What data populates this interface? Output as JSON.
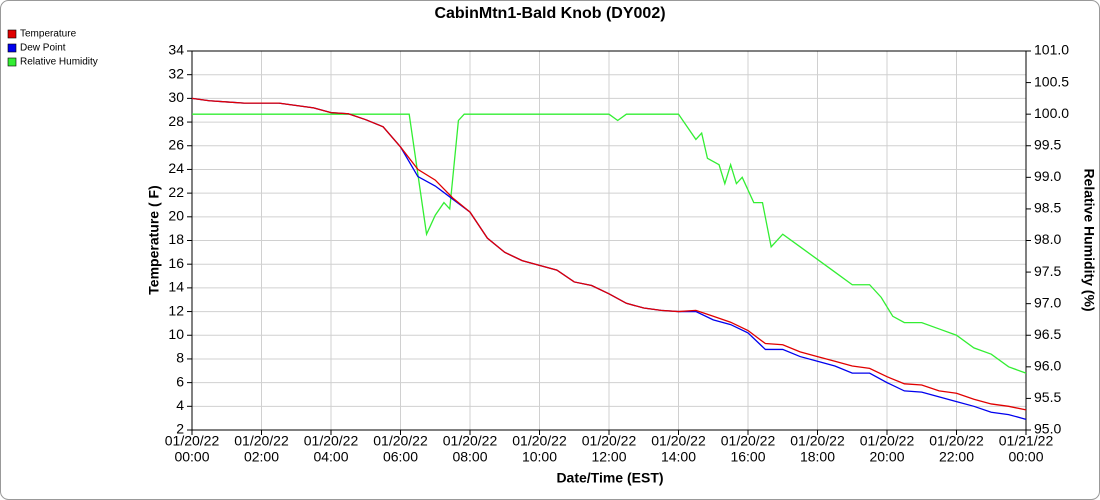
{
  "chart_data": {
    "type": "line",
    "title": "CabinMtn1-Bald Knob (DY002)",
    "xlabel": "Date/Time (EST)",
    "ylabel": "Temperature ( F)",
    "y2label": "Relative Humidity (%)",
    "xlim": [
      "01/20/22 00:00",
      "01/21/22 00:00"
    ],
    "xticks": [
      {
        "value": "01/20/22 00:00",
        "label": [
          "01/20/22",
          "00:00"
        ]
      },
      {
        "value": "01/20/22 02:00",
        "label": [
          "01/20/22",
          "02:00"
        ]
      },
      {
        "value": "01/20/22 04:00",
        "label": [
          "01/20/22",
          "04:00"
        ]
      },
      {
        "value": "01/20/22 06:00",
        "label": [
          "01/20/22",
          "06:00"
        ]
      },
      {
        "value": "01/20/22 08:00",
        "label": [
          "01/20/22",
          "08:00"
        ]
      },
      {
        "value": "01/20/22 10:00",
        "label": [
          "01/20/22",
          "10:00"
        ]
      },
      {
        "value": "01/20/22 12:00",
        "label": [
          "01/20/22",
          "12:00"
        ]
      },
      {
        "value": "01/20/22 14:00",
        "label": [
          "01/20/22",
          "14:00"
        ]
      },
      {
        "value": "01/20/22 16:00",
        "label": [
          "01/20/22",
          "16:00"
        ]
      },
      {
        "value": "01/20/22 18:00",
        "label": [
          "01/20/22",
          "18:00"
        ]
      },
      {
        "value": "01/20/22 20:00",
        "label": [
          "01/20/22",
          "20:00"
        ]
      },
      {
        "value": "01/20/22 22:00",
        "label": [
          "01/20/22",
          "22:00"
        ]
      },
      {
        "value": "01/21/22 00:00",
        "label": [
          "01/21/22",
          "00:00"
        ]
      }
    ],
    "ylim": [
      2,
      34
    ],
    "yticks": [
      2,
      4,
      6,
      8,
      10,
      12,
      14,
      16,
      18,
      20,
      22,
      24,
      26,
      28,
      30,
      32,
      34
    ],
    "y2lim": [
      95,
      101
    ],
    "y2ticks": [
      {
        "value": 95,
        "label": "95.0"
      },
      95.5,
      {
        "value": 96,
        "label": "96.0"
      },
      96.5,
      {
        "value": 97,
        "label": "97.0"
      },
      97.5,
      {
        "value": 98,
        "label": "98.0"
      },
      98.5,
      {
        "value": 99,
        "label": "99.0"
      },
      99.5,
      {
        "value": 100,
        "label": "100.0"
      },
      100.5,
      {
        "value": 101,
        "label": "101.0"
      }
    ],
    "grid": true,
    "legend": "top-left",
    "series": [
      {
        "name": "Temperature",
        "color": "#e00000",
        "x": [
          "01/20/22 00:00",
          "01/20/22 00:30",
          "01/20/22 01:00",
          "01/20/22 01:30",
          "01/20/22 02:00",
          "01/20/22 02:30",
          "01/20/22 03:00",
          "01/20/22 03:30",
          "01/20/22 04:00",
          "01/20/22 04:30",
          "01/20/22 05:00",
          "01/20/22 05:30",
          "01/20/22 06:00",
          "01/20/22 06:30",
          "01/20/22 07:00",
          "01/20/22 07:30",
          "01/20/22 08:00",
          "01/20/22 08:30",
          "01/20/22 09:00",
          "01/20/22 09:30",
          "01/20/22 10:00",
          "01/20/22 10:30",
          "01/20/22 11:00",
          "01/20/22 11:30",
          "01/20/22 12:00",
          "01/20/22 12:30",
          "01/20/22 13:00",
          "01/20/22 13:30",
          "01/20/22 14:00",
          "01/20/22 14:30",
          "01/20/22 15:00",
          "01/20/22 15:30",
          "01/20/22 16:00",
          "01/20/22 16:30",
          "01/20/22 17:00",
          "01/20/22 17:30",
          "01/20/22 18:00",
          "01/20/22 18:30",
          "01/20/22 19:00",
          "01/20/22 19:30",
          "01/20/22 20:00",
          "01/20/22 20:30",
          "01/20/22 21:00",
          "01/20/22 21:30",
          "01/20/22 22:00",
          "01/20/22 22:30",
          "01/20/22 23:00",
          "01/20/22 23:30",
          "01/21/22 00:00"
        ],
        "values": [
          30.0,
          29.8,
          29.7,
          29.6,
          29.6,
          29.6,
          29.4,
          29.2,
          28.8,
          28.7,
          28.2,
          27.6,
          25.9,
          24.0,
          23.1,
          21.6,
          20.4,
          18.2,
          17.0,
          16.3,
          15.9,
          15.5,
          14.5,
          14.2,
          13.5,
          12.7,
          12.3,
          12.1,
          12.0,
          12.1,
          11.6,
          11.1,
          10.4,
          9.3,
          9.2,
          8.6,
          8.2,
          7.8,
          7.4,
          7.2,
          6.5,
          5.9,
          5.8,
          5.3,
          5.1,
          4.6,
          4.2,
          4.0,
          3.7
        ]
      },
      {
        "name": "Dew Point",
        "color": "#0000ee",
        "x": [
          "01/20/22 00:00",
          "01/20/22 00:30",
          "01/20/22 01:00",
          "01/20/22 01:30",
          "01/20/22 02:00",
          "01/20/22 02:30",
          "01/20/22 03:00",
          "01/20/22 03:30",
          "01/20/22 04:00",
          "01/20/22 04:30",
          "01/20/22 05:00",
          "01/20/22 05:30",
          "01/20/22 06:00",
          "01/20/22 06:30",
          "01/20/22 07:00",
          "01/20/22 07:30",
          "01/20/22 08:00",
          "01/20/22 08:30",
          "01/20/22 09:00",
          "01/20/22 09:30",
          "01/20/22 10:00",
          "01/20/22 10:30",
          "01/20/22 11:00",
          "01/20/22 11:30",
          "01/20/22 12:00",
          "01/20/22 12:30",
          "01/20/22 13:00",
          "01/20/22 13:30",
          "01/20/22 14:00",
          "01/20/22 14:30",
          "01/20/22 15:00",
          "01/20/22 15:30",
          "01/20/22 16:00",
          "01/20/22 16:30",
          "01/20/22 17:00",
          "01/20/22 17:30",
          "01/20/22 18:00",
          "01/20/22 18:30",
          "01/20/22 19:00",
          "01/20/22 19:30",
          "01/20/22 20:00",
          "01/20/22 20:30",
          "01/20/22 21:00",
          "01/20/22 21:30",
          "01/20/22 22:00",
          "01/20/22 22:30",
          "01/20/22 23:00",
          "01/20/22 23:30",
          "01/21/22 00:00"
        ],
        "values": [
          30.0,
          29.8,
          29.7,
          29.6,
          29.6,
          29.6,
          29.4,
          29.2,
          28.8,
          28.7,
          28.2,
          27.6,
          25.9,
          23.4,
          22.6,
          21.5,
          20.4,
          18.2,
          17.0,
          16.3,
          15.9,
          15.5,
          14.5,
          14.2,
          13.5,
          12.7,
          12.3,
          12.1,
          12.0,
          12.0,
          11.3,
          10.9,
          10.2,
          8.8,
          8.8,
          8.2,
          7.8,
          7.4,
          6.8,
          6.8,
          6.0,
          5.3,
          5.2,
          4.8,
          4.4,
          4.0,
          3.5,
          3.3,
          2.9
        ]
      },
      {
        "name": "Relative Humidity",
        "color": "#33ee33",
        "axis": "y2",
        "x": [
          "01/20/22 00:00",
          "01/20/22 06:15",
          "01/20/22 06:45",
          "01/20/22 07:00",
          "01/20/22 07:15",
          "01/20/22 07:25",
          "01/20/22 07:40",
          "01/20/22 07:50",
          "01/20/22 12:00",
          "01/20/22 12:15",
          "01/20/22 12:30",
          "01/20/22 14:00",
          "01/20/22 14:30",
          "01/20/22 14:40",
          "01/20/22 14:50",
          "01/20/22 15:10",
          "01/20/22 15:20",
          "01/20/22 15:30",
          "01/20/22 15:40",
          "01/20/22 15:50",
          "01/20/22 16:10",
          "01/20/22 16:25",
          "01/20/22 16:40",
          "01/20/22 17:00",
          "01/20/22 17:30",
          "01/20/22 18:00",
          "01/20/22 18:30",
          "01/20/22 19:00",
          "01/20/22 19:30",
          "01/20/22 19:50",
          "01/20/22 20:10",
          "01/20/22 20:30",
          "01/20/22 21:00",
          "01/20/22 21:30",
          "01/20/22 22:00",
          "01/20/22 22:30",
          "01/20/22 23:00",
          "01/20/22 23:30",
          "01/21/22 00:00"
        ],
        "values": [
          100,
          100,
          98.1,
          98.4,
          98.6,
          98.5,
          99.9,
          100,
          100,
          99.9,
          100,
          100,
          99.6,
          99.7,
          99.3,
          99.2,
          98.9,
          99.2,
          98.9,
          99.0,
          98.6,
          98.6,
          97.9,
          98.1,
          97.9,
          97.7,
          97.5,
          97.3,
          97.3,
          97.1,
          96.8,
          96.7,
          96.7,
          96.6,
          96.5,
          96.3,
          96.2,
          96.0,
          95.9
        ]
      }
    ]
  }
}
